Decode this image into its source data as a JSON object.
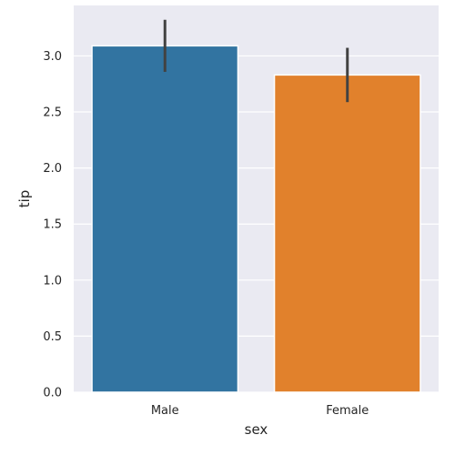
{
  "chart_data": {
    "type": "bar",
    "xlabel": "sex",
    "ylabel": "tip",
    "categories": [
      "Male",
      "Female"
    ],
    "values": [
      3.09,
      2.83
    ],
    "error_bars": [
      {
        "low": 2.87,
        "high": 3.31
      },
      {
        "low": 2.6,
        "high": 3.06
      }
    ],
    "colors": [
      "#3274a1",
      "#e1812c"
    ],
    "ylim": [
      0,
      3.45
    ],
    "yticks": [
      "0.0",
      "0.5",
      "1.0",
      "1.5",
      "2.0",
      "2.5",
      "3.0"
    ],
    "grid": true,
    "background": "#eaeaf2",
    "error_color": "#424242"
  }
}
